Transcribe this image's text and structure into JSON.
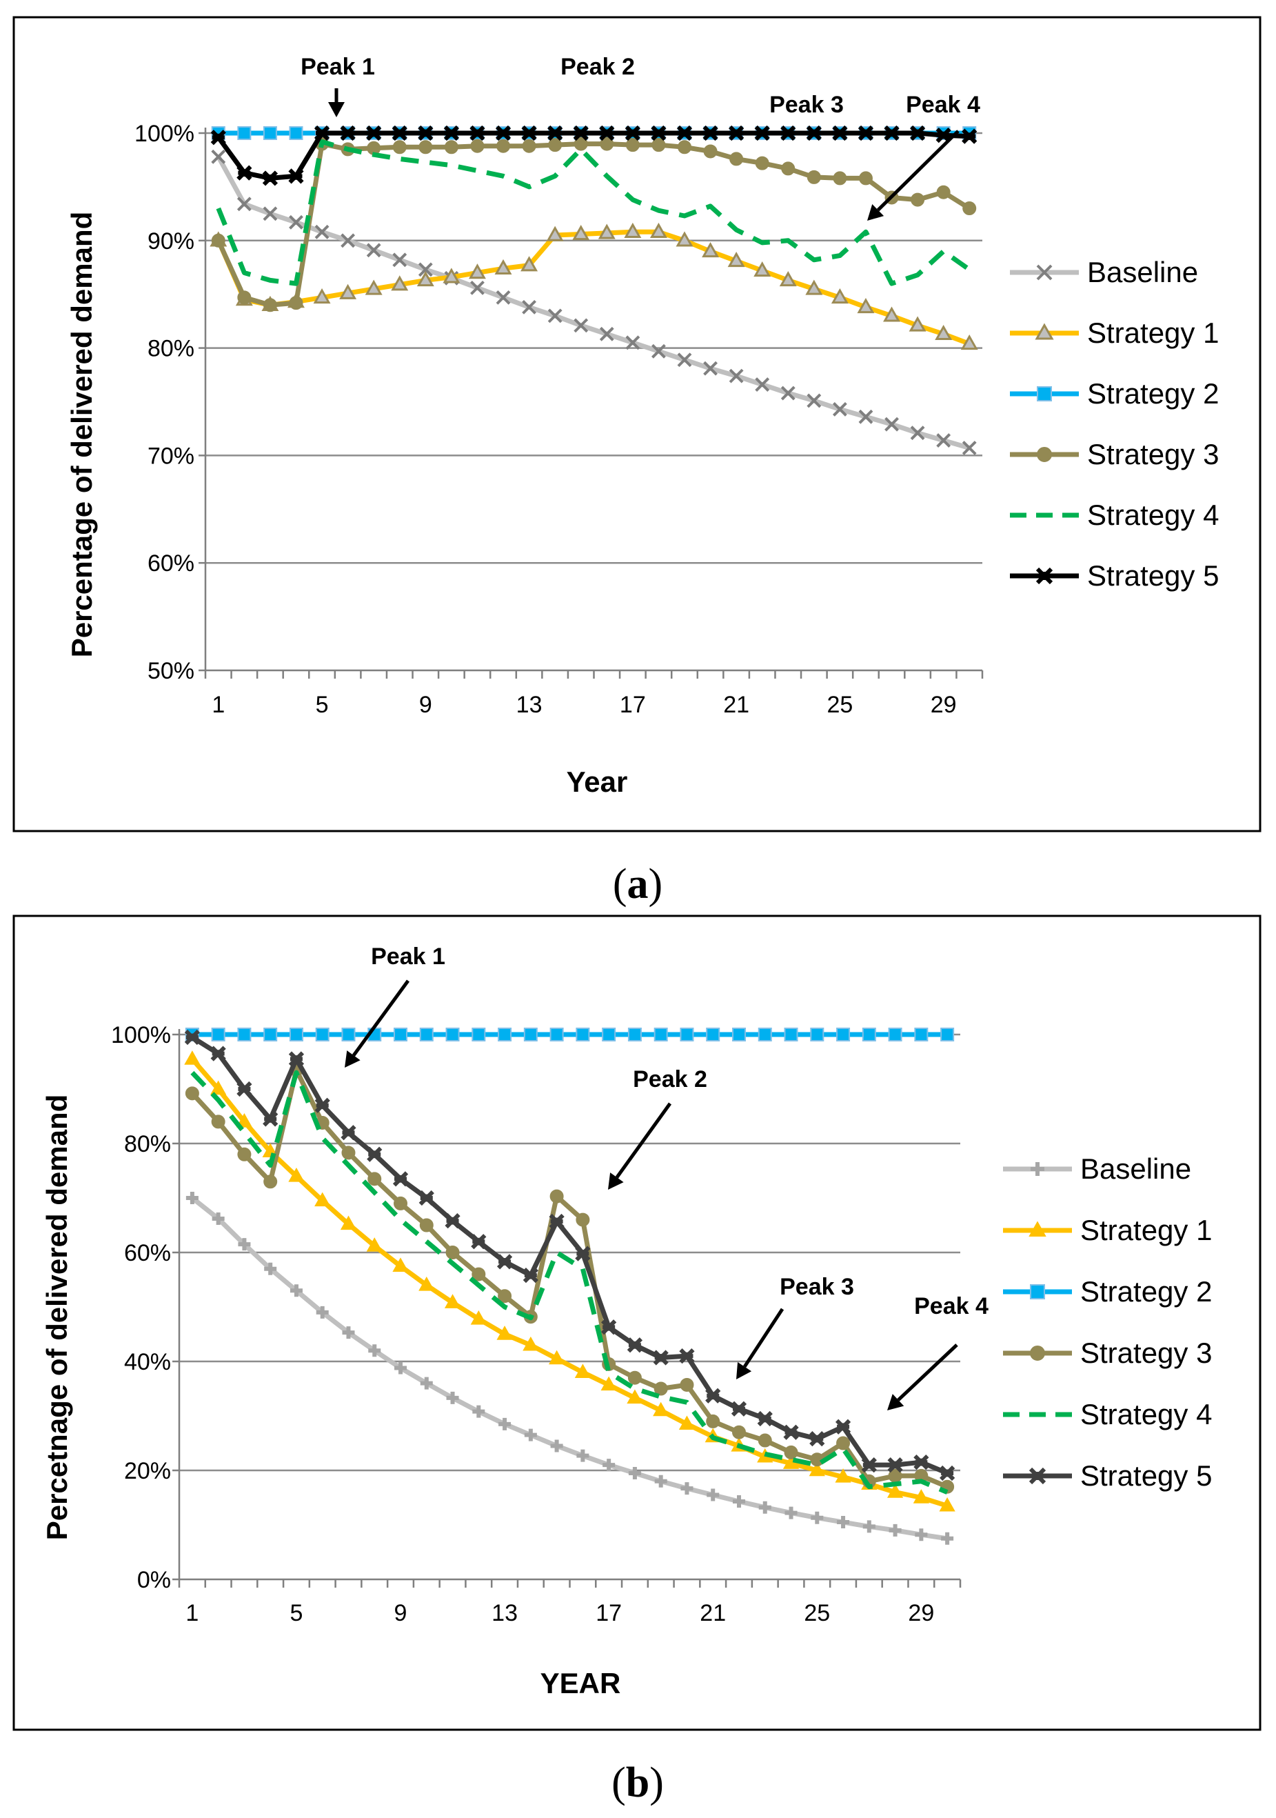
{
  "chart_data": [
    {
      "type": "line",
      "caption": "a",
      "xlabel": "Year",
      "ylabel": "Percentage of delivered demand",
      "x": [
        1,
        2,
        3,
        4,
        5,
        6,
        7,
        8,
        9,
        10,
        11,
        12,
        13,
        14,
        15,
        16,
        17,
        18,
        19,
        20,
        21,
        22,
        23,
        24,
        25,
        26,
        27,
        28,
        29,
        30
      ],
      "x_tick_labels": [
        "1",
        "5",
        "9",
        "13",
        "17",
        "21",
        "25",
        "29"
      ],
      "y_tick_labels": [
        "50%",
        "60%",
        "70%",
        "80%",
        "90%",
        "100%"
      ],
      "ylim": [
        50,
        100
      ],
      "grid": true,
      "legend_position": "right",
      "series": [
        {
          "name": "Baseline",
          "color": "#bfbfbf",
          "marker": "x",
          "marker_color": "#7f7f7f",
          "dash": false,
          "values": [
            97.8,
            93.4,
            92.5,
            91.7,
            90.8,
            90.0,
            89.1,
            88.2,
            87.3,
            86.5,
            85.6,
            84.7,
            83.8,
            83.0,
            82.1,
            81.3,
            80.5,
            79.7,
            78.9,
            78.1,
            77.4,
            76.6,
            75.8,
            75.1,
            74.3,
            73.6,
            72.9,
            72.1,
            71.4,
            70.7
          ]
        },
        {
          "name": "Strategy 1",
          "color": "#ffc000",
          "marker": "triangle-open",
          "marker_color": "#9c8b55",
          "dash": false,
          "values": [
            90.0,
            84.5,
            84.0,
            84.3,
            84.7,
            85.1,
            85.5,
            85.9,
            86.3,
            86.6,
            87.0,
            87.4,
            87.7,
            90.5,
            90.6,
            90.7,
            90.8,
            90.8,
            90.0,
            89.0,
            88.1,
            87.2,
            86.3,
            85.5,
            84.7,
            83.8,
            83.0,
            82.1,
            81.3,
            80.4
          ]
        },
        {
          "name": "Strategy 2",
          "color": "#00b0f0",
          "marker": "square",
          "marker_color": "#00b0f0",
          "dash": false,
          "values": [
            100,
            100,
            100,
            100,
            100,
            100,
            100,
            100,
            100,
            100,
            100,
            100,
            100,
            100,
            100,
            100,
            100,
            100,
            100,
            100,
            100,
            100,
            100,
            100,
            100,
            100,
            100,
            100,
            100,
            100
          ]
        },
        {
          "name": "Strategy 3",
          "color": "#938953",
          "marker": "circle",
          "marker_color": "#938953",
          "dash": false,
          "values": [
            90.0,
            84.7,
            84.0,
            84.2,
            99.0,
            98.5,
            98.6,
            98.7,
            98.7,
            98.7,
            98.8,
            98.8,
            98.8,
            98.9,
            99.0,
            99.0,
            98.9,
            98.9,
            98.7,
            98.3,
            97.6,
            97.2,
            96.7,
            95.9,
            95.8,
            95.8,
            94.0,
            93.8,
            94.5,
            93.0
          ]
        },
        {
          "name": "Strategy 4",
          "color": "#00b050",
          "marker": "none",
          "marker_color": "#00b050",
          "dash": true,
          "values": [
            93.0,
            87.0,
            86.3,
            86.0,
            99.2,
            98.5,
            98.0,
            97.6,
            97.3,
            97.0,
            96.5,
            96.0,
            95.0,
            96.0,
            98.5,
            96.0,
            93.8,
            92.8,
            92.3,
            93.2,
            91.0,
            89.8,
            90.0,
            88.2,
            88.6,
            90.8,
            86.0,
            86.8,
            89.0,
            87.3
          ]
        },
        {
          "name": "Strategy 5",
          "color": "#000000",
          "marker": "star",
          "marker_color": "#000000",
          "dash": false,
          "values": [
            99.6,
            96.3,
            95.8,
            96.0,
            100,
            100,
            100,
            100,
            100,
            100,
            100,
            100,
            100,
            100,
            100,
            100,
            100,
            100,
            100,
            100,
            100,
            100,
            100,
            100,
            100,
            100,
            100,
            100,
            99.8,
            99.7
          ]
        }
      ],
      "annotations": [
        {
          "text": "Peak 1",
          "x": 6
        },
        {
          "text": "Peak 2",
          "x": 15
        },
        {
          "text": "Peak 3",
          "x": 22
        },
        {
          "text": "Peak 4",
          "x": 26
        }
      ]
    },
    {
      "type": "line",
      "caption": "b",
      "xlabel": "YEAR",
      "ylabel": "Percetnage of delivered demand",
      "x": [
        1,
        2,
        3,
        4,
        5,
        6,
        7,
        8,
        9,
        10,
        11,
        12,
        13,
        14,
        15,
        16,
        17,
        18,
        19,
        20,
        21,
        22,
        23,
        24,
        25,
        26,
        27,
        28,
        29,
        30
      ],
      "x_tick_labels": [
        "1",
        "5",
        "9",
        "13",
        "17",
        "21",
        "25",
        "29"
      ],
      "y_tick_labels": [
        "0%",
        "20%",
        "40%",
        "60%",
        "80%",
        "100%"
      ],
      "ylim": [
        0,
        100
      ],
      "grid": true,
      "legend_position": "right",
      "series": [
        {
          "name": "Baseline",
          "color": "#bfbfbf",
          "marker": "plus",
          "marker_color": "#bfbfbf",
          "dash": false,
          "values": [
            70.0,
            66.2,
            61.5,
            57.0,
            53.0,
            49.0,
            45.3,
            42.0,
            38.8,
            36.0,
            33.3,
            30.8,
            28.5,
            26.5,
            24.5,
            22.7,
            21.0,
            19.5,
            18.0,
            16.7,
            15.5,
            14.3,
            13.2,
            12.2,
            11.3,
            10.5,
            9.7,
            9.0,
            8.2,
            7.5
          ]
        },
        {
          "name": "Strategy 1",
          "color": "#ffc000",
          "marker": "triangle",
          "marker_color": "#ffc000",
          "dash": false,
          "values": [
            95.5,
            90.0,
            84.0,
            78.5,
            74.0,
            69.5,
            65.2,
            61.2,
            57.5,
            54.0,
            50.8,
            47.8,
            45.0,
            43.0,
            40.5,
            38.0,
            35.7,
            33.3,
            31.0,
            28.5,
            26.2,
            24.5,
            22.5,
            21.3,
            20.0,
            18.8,
            17.5,
            16.0,
            15.0,
            13.5
          ]
        },
        {
          "name": "Strategy 2",
          "color": "#00b0f0",
          "marker": "square",
          "marker_color": "#00b0f0",
          "dash": false,
          "values": [
            100,
            100,
            100,
            100,
            100,
            100,
            100,
            100,
            100,
            100,
            100,
            100,
            100,
            100,
            100,
            100,
            100,
            100,
            100,
            100,
            100,
            100,
            100,
            100,
            100,
            100,
            100,
            100,
            100,
            100
          ]
        },
        {
          "name": "Strategy 3",
          "color": "#938953",
          "marker": "circle",
          "marker_color": "#938953",
          "dash": false,
          "values": [
            89.2,
            84.0,
            78.0,
            73.0,
            93.5,
            83.8,
            78.3,
            73.5,
            69.0,
            65.0,
            60.0,
            56.0,
            52.0,
            48.2,
            70.3,
            66.0,
            39.5,
            37.0,
            35.0,
            35.7,
            29.0,
            27.0,
            25.5,
            23.3,
            22.0,
            25.0,
            18.0,
            19.0,
            19.0,
            17.0
          ]
        },
        {
          "name": "Strategy 4",
          "color": "#00b050",
          "marker": "none",
          "marker_color": "#00b050",
          "dash": true,
          "values": [
            93.0,
            88.0,
            82.0,
            76.0,
            93.0,
            81.0,
            76.0,
            71.0,
            66.0,
            62.0,
            58.0,
            54.0,
            50.0,
            48.0,
            60.0,
            57.0,
            38.0,
            35.0,
            33.5,
            32.5,
            26.0,
            24.5,
            23.0,
            22.0,
            21.0,
            24.0,
            17.0,
            17.5,
            18.0,
            16.0
          ]
        },
        {
          "name": "Strategy 5",
          "color": "#404040",
          "marker": "star",
          "marker_color": "#404040",
          "dash": false,
          "values": [
            99.5,
            96.5,
            90.0,
            84.5,
            95.5,
            87.0,
            82.0,
            78.0,
            73.5,
            70.0,
            65.8,
            62.0,
            58.3,
            55.8,
            65.7,
            59.8,
            46.3,
            43.0,
            40.7,
            41.0,
            33.7,
            31.3,
            29.5,
            27.0,
            25.8,
            28.0,
            21.0,
            21.0,
            21.5,
            19.5
          ]
        }
      ],
      "annotations": [
        {
          "text": "Peak 1",
          "x": 6
        },
        {
          "text": "Peak 2",
          "x": 16
        },
        {
          "text": "Peak 3",
          "x": 22
        },
        {
          "text": "Peak 4",
          "x": 28
        }
      ]
    }
  ]
}
